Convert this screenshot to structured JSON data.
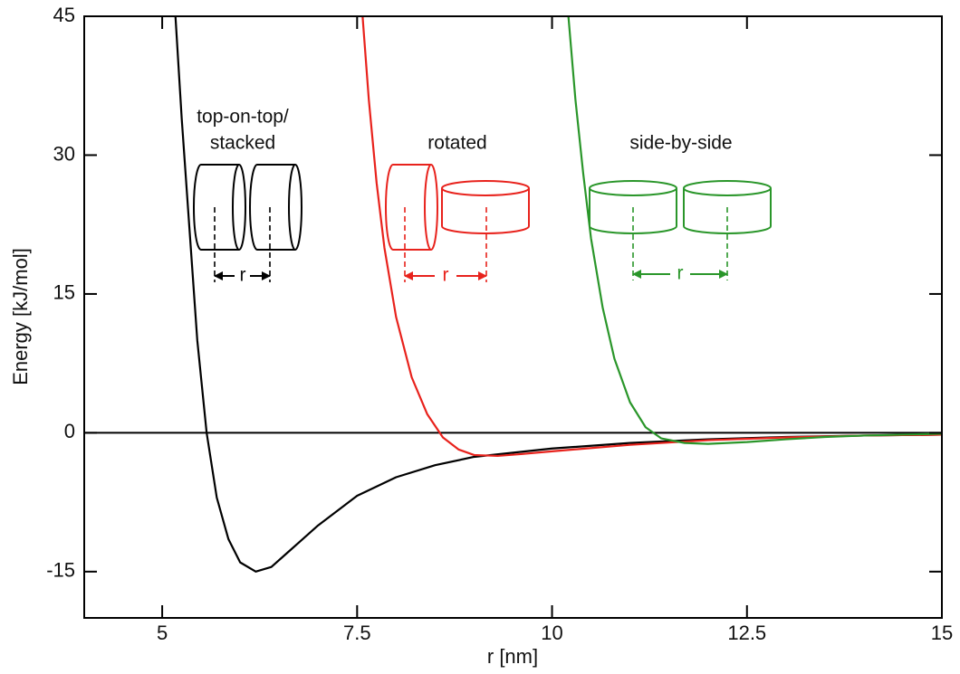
{
  "chart_data": {
    "type": "line",
    "xlabel": "r [nm]",
    "ylabel": "Energy [kJ/mol]",
    "xlim": [
      4,
      15
    ],
    "xticks": [
      5,
      7.5,
      10,
      12.5,
      15
    ],
    "ylim": [
      -20,
      45
    ],
    "yticks": [
      -15,
      0,
      15,
      30,
      45
    ],
    "zero_line": true,
    "annotations": [
      "top-on-top/",
      "stacked",
      "rotated",
      "side-by-side",
      "r",
      "r",
      "r"
    ],
    "series": [
      {
        "color": "#000000",
        "x": [
          5.17,
          5.25,
          5.35,
          5.45,
          5.57,
          5.7,
          5.85,
          6.0,
          6.2,
          6.4,
          6.6,
          6.8,
          7.0,
          7.5,
          8,
          8.5,
          9,
          10,
          11,
          12,
          13,
          14,
          15
        ],
        "values": [
          45,
          34,
          22,
          10,
          0,
          -7,
          -11.5,
          -14,
          -15,
          -14.5,
          -13,
          -11.5,
          -10,
          -6.8,
          -4.8,
          -3.5,
          -2.6,
          -1.7,
          -1.1,
          -0.7,
          -0.45,
          -0.3,
          -0.2
        ]
      },
      {
        "color": "#e8221c",
        "x": [
          7.57,
          7.65,
          7.75,
          7.85,
          8.0,
          8.2,
          8.4,
          8.6,
          8.8,
          9.0,
          9.3,
          9.6,
          10,
          11,
          12,
          13,
          14,
          15
        ],
        "values": [
          45,
          36,
          27,
          20,
          12.5,
          6,
          2,
          -0.5,
          -1.8,
          -2.4,
          -2.5,
          -2.3,
          -2.0,
          -1.3,
          -0.8,
          -0.5,
          -0.3,
          -0.2
        ]
      },
      {
        "color": "#2a962a",
        "x": [
          10.21,
          10.3,
          10.4,
          10.5,
          10.65,
          10.8,
          11.0,
          11.2,
          11.4,
          11.7,
          12.0,
          12.5,
          13,
          13.5,
          14,
          15
        ],
        "values": [
          45,
          36,
          28,
          21,
          13.5,
          8,
          3.3,
          0.6,
          -0.6,
          -1.1,
          -1.2,
          -1.0,
          -0.7,
          -0.45,
          -0.3,
          -0.1
        ]
      }
    ]
  }
}
